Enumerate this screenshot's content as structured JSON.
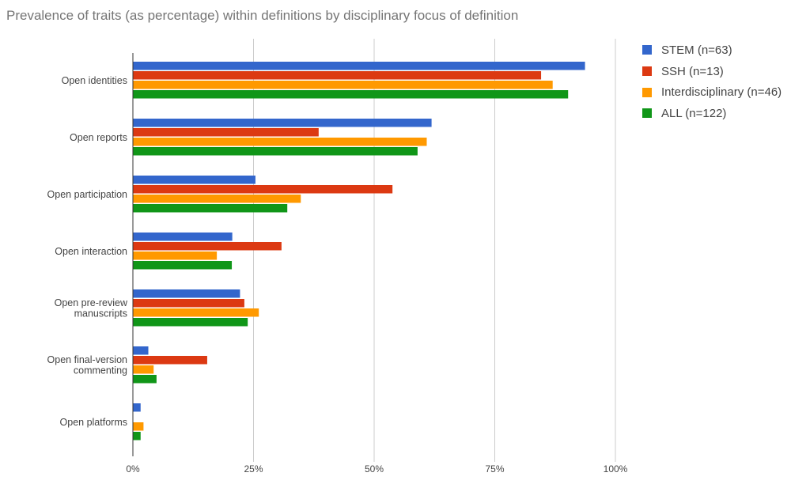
{
  "chart_data": {
    "type": "bar",
    "orientation": "horizontal",
    "title": "Prevalence of traits (as percentage) within definitions by disciplinary focus of definition",
    "categories": [
      [
        "Open identities"
      ],
      [
        "Open reports"
      ],
      [
        "Open participation"
      ],
      [
        "Open interaction"
      ],
      [
        "Open pre-review",
        "manuscripts"
      ],
      [
        "Open final-version",
        "commenting"
      ],
      [
        "Open platforms"
      ]
    ],
    "series": [
      {
        "name": "STEM (n=63)",
        "color": "#3366cc",
        "values": [
          93.7,
          61.9,
          25.4,
          20.6,
          22.2,
          3.2,
          1.6
        ]
      },
      {
        "name": "SSH (n=13)",
        "color": "#dc3912",
        "values": [
          84.6,
          38.5,
          53.8,
          30.8,
          23.1,
          15.4,
          0
        ]
      },
      {
        "name": "Interdisciplinary (n=46)",
        "color": "#ff9900",
        "values": [
          87.0,
          60.9,
          34.8,
          17.4,
          26.1,
          4.3,
          2.2
        ]
      },
      {
        "name": "ALL (n=122)",
        "color": "#109618",
        "values": [
          90.2,
          59.0,
          32.0,
          20.5,
          23.8,
          4.9,
          1.6
        ]
      }
    ],
    "xlim": [
      0,
      100
    ],
    "xticks": [
      "0%",
      "25%",
      "50%",
      "75%",
      "100%"
    ],
    "xlabel": "",
    "ylabel": "",
    "grid": true,
    "legend_position": "right"
  }
}
